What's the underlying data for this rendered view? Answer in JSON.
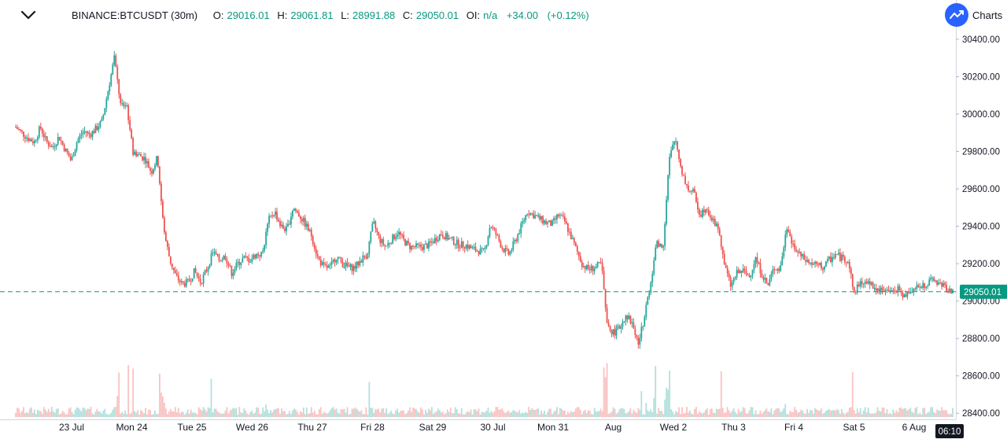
{
  "header": {
    "symbol": "BINANCE:BTCUSDT (30m)",
    "o_label": "O:",
    "o_value": "29016.01",
    "h_label": "H:",
    "h_value": "29061.81",
    "l_label": "L:",
    "l_value": "28991.88",
    "c_label": "C:",
    "c_value": "29050.01",
    "oi_label": "OI:",
    "oi_value": "n/a",
    "change": "+34.00",
    "change_pct": "(+0.12%)"
  },
  "brand": {
    "label": "Charts"
  },
  "colors": {
    "up": "#26a69a",
    "down": "#ef5350",
    "price_line": "#089981",
    "axis_text": "#131722"
  },
  "chart_data": {
    "type": "candlestick",
    "title": "BINANCE:BTCUSDT (30m)",
    "y_ticks": [
      "30400.00",
      "30200.00",
      "30000.00",
      "29800.00",
      "29600.00",
      "29400.00",
      "29200.00",
      "29000.00",
      "28800.00",
      "28600.00",
      "28400.00"
    ],
    "ylim": [
      28380,
      30450
    ],
    "x_ticks": [
      "23 Jul",
      "Mon 24",
      "Tue 25",
      "Wed 26",
      "Thu 27",
      "Fri 28",
      "Sat 29",
      "30 Jul",
      "Mon 31",
      "Aug",
      "Wed 2",
      "Thu 3",
      "Fri 4",
      "Sat 5",
      "6 Aug"
    ],
    "last_price": "29050.01",
    "last_price_value": 29050.01,
    "time_label": "06:10",
    "close_path": [
      [
        0,
        29930
      ],
      [
        1,
        29900
      ],
      [
        2,
        29870
      ],
      [
        3,
        29850
      ],
      [
        4,
        29930
      ],
      [
        5,
        29850
      ],
      [
        6,
        29820
      ],
      [
        7,
        29880
      ],
      [
        8,
        29810
      ],
      [
        9,
        29750
      ],
      [
        10,
        29860
      ],
      [
        11,
        29910
      ],
      [
        12,
        29890
      ],
      [
        13,
        29920
      ],
      [
        14,
        29960
      ],
      [
        15,
        30130
      ],
      [
        16,
        30300
      ],
      [
        17,
        30050
      ],
      [
        18,
        30050
      ],
      [
        19,
        29800
      ],
      [
        20,
        29780
      ],
      [
        21,
        29760
      ],
      [
        22,
        29690
      ],
      [
        23,
        29770
      ],
      [
        24,
        29380
      ],
      [
        25,
        29220
      ],
      [
        26,
        29130
      ],
      [
        27,
        29090
      ],
      [
        28,
        29100
      ],
      [
        29,
        29160
      ],
      [
        30,
        29100
      ],
      [
        31,
        29170
      ],
      [
        32,
        29260
      ],
      [
        33,
        29220
      ],
      [
        34,
        29240
      ],
      [
        35,
        29150
      ],
      [
        36,
        29200
      ],
      [
        37,
        29230
      ],
      [
        38,
        29220
      ],
      [
        39,
        29250
      ],
      [
        40,
        29250
      ],
      [
        41,
        29430
      ],
      [
        42,
        29480
      ],
      [
        43,
        29400
      ],
      [
        44,
        29380
      ],
      [
        45,
        29500
      ],
      [
        46,
        29460
      ],
      [
        47,
        29410
      ],
      [
        48,
        29350
      ],
      [
        49,
        29230
      ],
      [
        50,
        29180
      ],
      [
        51,
        29180
      ],
      [
        52,
        29240
      ],
      [
        53,
        29200
      ],
      [
        54,
        29180
      ],
      [
        55,
        29180
      ],
      [
        56,
        29220
      ],
      [
        57,
        29250
      ],
      [
        58,
        29420
      ],
      [
        59,
        29330
      ],
      [
        60,
        29290
      ],
      [
        61,
        29330
      ],
      [
        62,
        29370
      ],
      [
        63,
        29320
      ],
      [
        64,
        29290
      ],
      [
        65,
        29290
      ],
      [
        66,
        29290
      ],
      [
        67,
        29300
      ],
      [
        68,
        29330
      ],
      [
        69,
        29360
      ],
      [
        70,
        29340
      ],
      [
        71,
        29320
      ],
      [
        72,
        29300
      ],
      [
        73,
        29300
      ],
      [
        74,
        29280
      ],
      [
        75,
        29270
      ],
      [
        76,
        29260
      ],
      [
        77,
        29410
      ],
      [
        78,
        29350
      ],
      [
        79,
        29280
      ],
      [
        80,
        29250
      ],
      [
        81,
        29320
      ],
      [
        82,
        29400
      ],
      [
        83,
        29480
      ],
      [
        84,
        29460
      ],
      [
        85,
        29440
      ],
      [
        86,
        29420
      ],
      [
        87,
        29410
      ],
      [
        88,
        29460
      ],
      [
        89,
        29430
      ],
      [
        90,
        29350
      ],
      [
        91,
        29270
      ],
      [
        92,
        29190
      ],
      [
        93,
        29170
      ],
      [
        94,
        29180
      ],
      [
        95,
        29200
      ],
      [
        96,
        28860
      ],
      [
        97,
        28830
      ],
      [
        98,
        28860
      ],
      [
        99,
        28930
      ],
      [
        100,
        28880
      ],
      [
        101,
        28770
      ],
      [
        102,
        28920
      ],
      [
        103,
        29100
      ],
      [
        104,
        29320
      ],
      [
        105,
        29280
      ],
      [
        106,
        29760
      ],
      [
        107,
        29870
      ],
      [
        108,
        29700
      ],
      [
        109,
        29600
      ],
      [
        110,
        29580
      ],
      [
        111,
        29460
      ],
      [
        112,
        29510
      ],
      [
        113,
        29430
      ],
      [
        114,
        29390
      ],
      [
        115,
        29190
      ],
      [
        116,
        29080
      ],
      [
        117,
        29150
      ],
      [
        118,
        29160
      ],
      [
        119,
        29130
      ],
      [
        120,
        29230
      ],
      [
        121,
        29150
      ],
      [
        122,
        29080
      ],
      [
        123,
        29180
      ],
      [
        124,
        29170
      ],
      [
        125,
        29380
      ],
      [
        126,
        29300
      ],
      [
        127,
        29250
      ],
      [
        128,
        29220
      ],
      [
        129,
        29200
      ],
      [
        130,
        29190
      ],
      [
        131,
        29180
      ],
      [
        132,
        29220
      ],
      [
        133,
        29250
      ],
      [
        134,
        29230
      ],
      [
        135,
        29220
      ],
      [
        136,
        29050
      ],
      [
        137,
        29090
      ],
      [
        138,
        29110
      ],
      [
        139,
        29080
      ],
      [
        140,
        29060
      ],
      [
        141,
        29060
      ],
      [
        142,
        29050
      ],
      [
        143,
        29070
      ],
      [
        144,
        29020
      ],
      [
        145,
        29060
      ],
      [
        146,
        29070
      ],
      [
        147,
        29080
      ],
      [
        148,
        29100
      ],
      [
        149,
        29110
      ],
      [
        150,
        29090
      ],
      [
        151,
        29070
      ],
      [
        152,
        29050
      ]
    ]
  }
}
